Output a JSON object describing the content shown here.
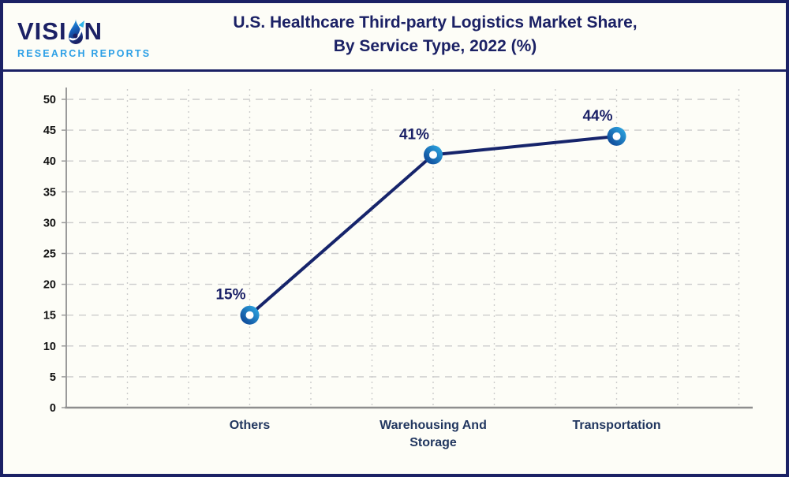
{
  "header": {
    "logo": {
      "brand_prefix": "VISI",
      "brand_suffix": "N",
      "tagline": "RESEARCH REPORTS"
    },
    "title_lines": [
      "U.S. Healthcare Third-party Logistics Market Share,",
      "By Service Type, 2022 (%)"
    ]
  },
  "chart_data": {
    "type": "line",
    "title": "U.S. Healthcare Third-party Logistics Market Share, By Service Type, 2022 (%)",
    "categories": [
      "Others",
      "Warehousing And Storage",
      "Transportation"
    ],
    "category_display": [
      "Others",
      "Warehousing And\nStorage",
      "Transportation"
    ],
    "values": [
      15,
      41,
      44
    ],
    "point_labels": [
      "15%",
      "41%",
      "44%"
    ],
    "xlabel": "",
    "ylabel": "",
    "ylim": [
      0,
      50
    ],
    "ytick_step": 5,
    "grid": true,
    "legend": false,
    "colors": {
      "line": "#16246b",
      "marker_gradient_start": "#0a3a8c",
      "marker_gradient_end": "#31b2ea",
      "marker_center": "#ffffff",
      "point_label": "#1b2167",
      "axis": "#9b9b9b",
      "grid": "#cccccc",
      "tick_label": "#111111",
      "category_label": "#21365f",
      "title": "#1b2165",
      "border": "#1b2165",
      "background": "#fdfdf7",
      "tagline": "#2b9fe6"
    }
  }
}
